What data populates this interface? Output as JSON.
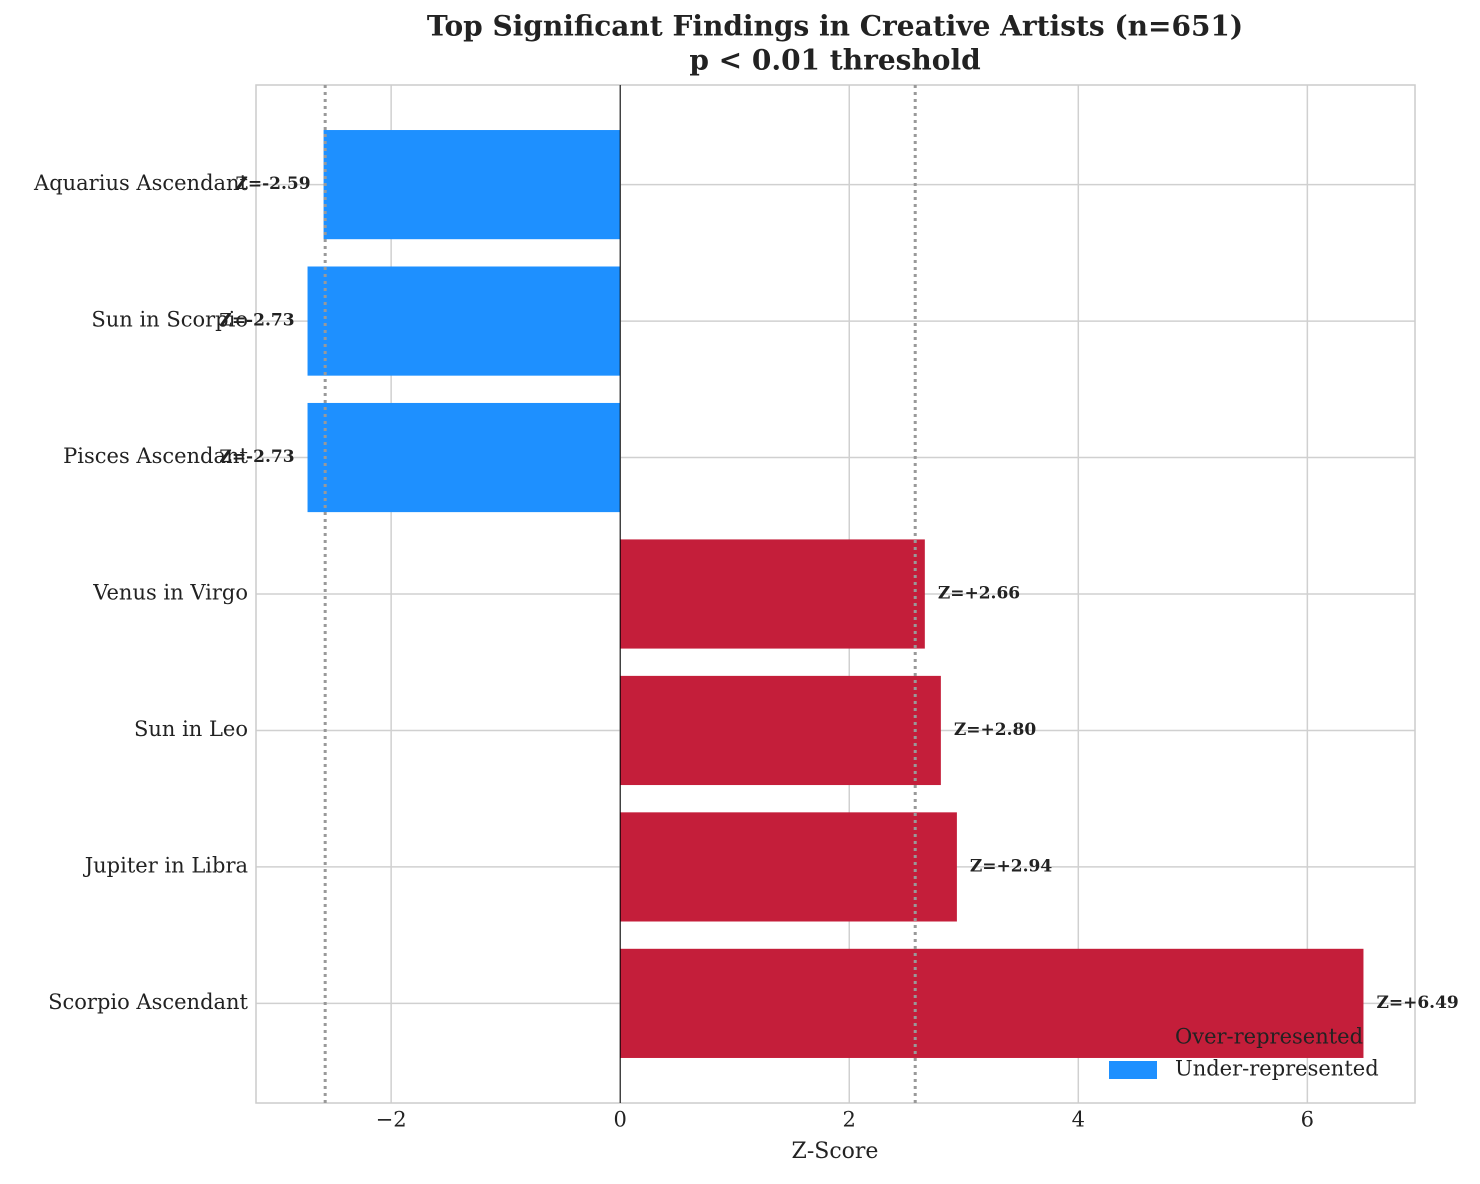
{
  "chart_data": {
    "type": "barh",
    "title": "Top Significant Findings in Creative Artists (n=651)",
    "subtitle": "p < 0.01 threshold",
    "x_label": "Z-Score",
    "categories": [
      "Aquarius Ascendant",
      "Sun in Scorpio",
      "Pisces Ascendant",
      "Venus in Virgo",
      "Sun in Leo",
      "Jupiter in Libra",
      "Scorpio Ascendant"
    ],
    "values": [
      -2.59,
      -2.73,
      -2.73,
      2.66,
      2.8,
      2.94,
      6.49
    ],
    "value_labels": [
      "Z=-2.59",
      "Z=-2.73",
      "Z=-2.73",
      "Z=+2.66",
      "Z=+2.80",
      "Z=+2.94",
      "Z=+6.49"
    ],
    "colors": [
      "#1e90ff",
      "#1e90ff",
      "#1e90ff",
      "#c41e3a",
      "#c41e3a",
      "#c41e3a",
      "#c41e3a"
    ],
    "xlim": [
      -3.18,
      6.94
    ],
    "xticks": [
      {
        "value": -2,
        "label": "−2"
      },
      0,
      2,
      4,
      6
    ],
    "threshold_lines": [
      -2.576,
      2.576
    ],
    "grid": true,
    "legend_position": "lower right",
    "legend": [
      {
        "name": "Over-represented",
        "color": "#c41e3a"
      },
      {
        "name": "Under-represented",
        "color": "#1e90ff"
      }
    ]
  }
}
